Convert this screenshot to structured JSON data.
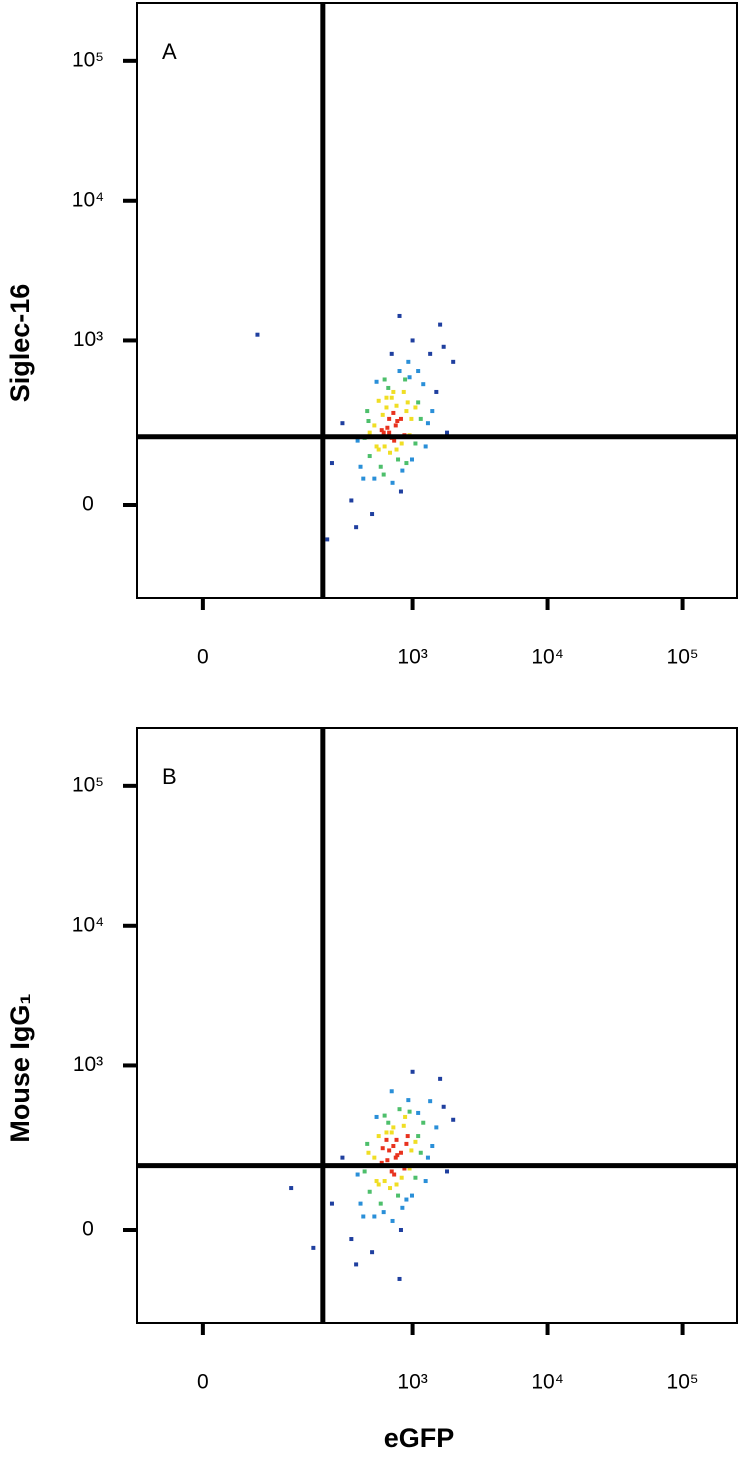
{
  "chart_data": [
    {
      "type": "scatter",
      "annotation": "A",
      "y_label": "Siglec-16",
      "xscale": "biexponential",
      "yscale": "biexponential",
      "xlim": [
        -77,
        253000
      ],
      "ylim": [
        -295,
        259000
      ],
      "xticks": [
        0,
        {
          "value": 1000,
          "label": "10³"
        },
        {
          "value": 10000,
          "label": "10⁴"
        },
        {
          "value": 100000,
          "label": "10⁵"
        }
      ],
      "yticks": [
        0,
        {
          "value": 1000,
          "label": "10³"
        },
        {
          "value": 10000,
          "label": "10⁴"
        },
        {
          "value": 100000,
          "label": "10⁵"
        }
      ],
      "gate_x": 213,
      "gate_y": 184,
      "colormap": [
        "#1f3f9f",
        "#2a8fd8",
        "#4dbf6b",
        "#f0de24",
        "#e8321e"
      ],
      "x": [
        700,
        650,
        820,
        540,
        900,
        760,
        610,
        480,
        1100,
        950,
        720,
        580,
        830,
        670,
        1300,
        430,
        880,
        760,
        520,
        990,
        640,
        710,
        1500,
        390,
        800,
        600,
        1050,
        460,
        930,
        680,
        350,
        1200,
        560,
        840,
        750,
        620,
        1700,
        300,
        980,
        700,
        500,
        870,
        1400,
        660,
        780,
        410,
        1100,
        590,
        920,
        730,
        250,
        1600,
        820,
        540,
        1000,
        670,
        1250,
        470,
        860,
        610,
        2000,
        380,
        950,
        720,
        560,
        1800,
        800,
        640,
        440,
        1150,
        230,
        700,
        1350,
        900,
        520,
        770,
        620,
        1050,
        480,
        60
      ],
      "y": [
        180,
        220,
        260,
        150,
        300,
        140,
        200,
        120,
        350,
        190,
        420,
        90,
        160,
        260,
        240,
        60,
        520,
        330,
        230,
        110,
        380,
        50,
        420,
        170,
        600,
        280,
        160,
        300,
        700,
        130,
        10,
        480,
        360,
        80,
        230,
        150,
        900,
        240,
        260,
        800,
        -20,
        190,
        300,
        450,
        110,
        90,
        600,
        210,
        350,
        170,
        100,
        1300,
        30,
        500,
        1000,
        200,
        150,
        250,
        420,
        70,
        700,
        -50,
        540,
        290,
        140,
        200,
        1500,
        320,
        180,
        260,
        -80,
        380,
        800,
        100,
        60,
        250,
        520,
        320,
        200,
        1100
      ]
    },
    {
      "type": "scatter",
      "annotation": "B",
      "y_label": "Mouse IgG₁",
      "x_label": "eGFP",
      "xscale": "biexponential",
      "yscale": "biexponential",
      "xlim": [
        -77,
        253000
      ],
      "ylim": [
        -295,
        259000
      ],
      "xticks": [
        0,
        {
          "value": 1000,
          "label": "10³"
        },
        {
          "value": 10000,
          "label": "10⁴"
        },
        {
          "value": 100000,
          "label": "10⁵"
        }
      ],
      "yticks": [
        0,
        {
          "value": 1000,
          "label": "10³"
        },
        {
          "value": 10000,
          "label": "10⁴"
        },
        {
          "value": 100000,
          "label": "10⁵"
        }
      ],
      "gate_x": 213,
      "gate_y": 170,
      "colormap": [
        "#1f3f9f",
        "#2a8fd8",
        "#4dbf6b",
        "#f0de24",
        "#e8321e"
      ],
      "x": [
        700,
        650,
        820,
        540,
        900,
        760,
        610,
        480,
        1100,
        950,
        720,
        580,
        830,
        670,
        1300,
        430,
        880,
        760,
        520,
        990,
        640,
        710,
        1500,
        390,
        800,
        600,
        1050,
        460,
        930,
        680,
        350,
        1200,
        560,
        840,
        750,
        620,
        1700,
        300,
        980,
        700,
        500,
        870,
        1400,
        660,
        780,
        410,
        1100,
        590,
        920,
        730,
        250,
        1600,
        820,
        540,
        1000,
        670,
        1250,
        470,
        860,
        610,
        2000,
        380,
        950,
        720,
        560,
        1800,
        800,
        640,
        440,
        1150,
        120,
        700,
        1350,
        900,
        520,
        770,
        620,
        1050,
        480,
        180
      ],
      "y": [
        150,
        190,
        220,
        120,
        260,
        110,
        170,
        90,
        300,
        160,
        350,
        60,
        130,
        230,
        200,
        30,
        420,
        280,
        200,
        80,
        320,
        20,
        350,
        140,
        480,
        240,
        130,
        260,
        560,
        100,
        -20,
        380,
        300,
        50,
        200,
        120,
        500,
        200,
        230,
        650,
        -50,
        160,
        250,
        380,
        80,
        60,
        450,
        180,
        300,
        140,
        60,
        800,
        0,
        420,
        900,
        170,
        120,
        220,
        360,
        40,
        400,
        -80,
        460,
        250,
        110,
        150,
        -120,
        280,
        150,
        220,
        100,
        320,
        550,
        70,
        30,
        210,
        430,
        270,
        170,
        -40
      ]
    }
  ]
}
